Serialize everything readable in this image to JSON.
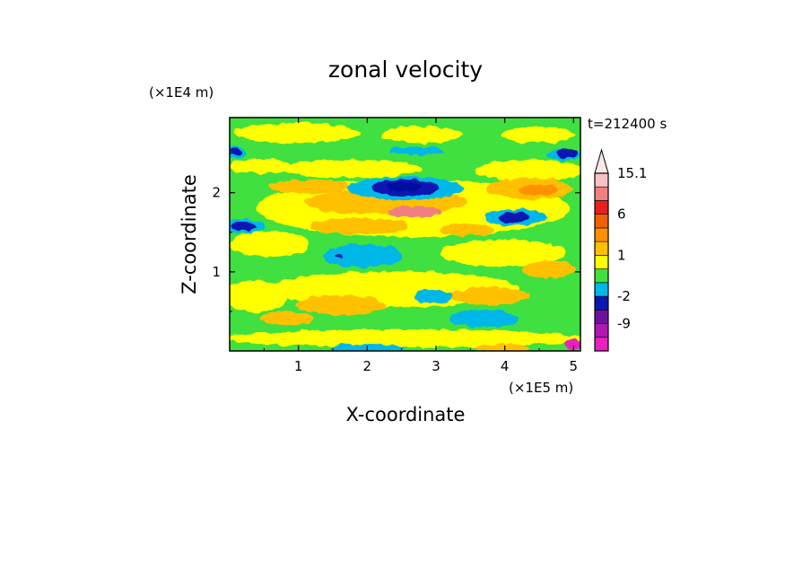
{
  "chart_data": {
    "type": "heatmap",
    "title": "zonal velocity",
    "xlabel": "X-coordinate",
    "ylabel": "Z-coordinate",
    "x_unit": "(×1E5 m)",
    "y_unit": "(×1E4 m)",
    "time_label": "t=212400 s",
    "xlim": [
      0,
      5.1
    ],
    "ylim": [
      0,
      2.95
    ],
    "x_ticks": [
      1,
      2,
      3,
      4,
      5
    ],
    "y_ticks": [
      1,
      2
    ],
    "colorbar": {
      "levels": [
        -12,
        -9,
        -6,
        -2,
        -1,
        0,
        1,
        2,
        3,
        6,
        9,
        12,
        15.1
      ],
      "colors": [
        "#e820c0",
        "#b018b0",
        "#7010a0",
        "#0818b0",
        "#00b8e8",
        "#40e040",
        "#ffff00",
        "#ffc000",
        "#ff9000",
        "#f06000",
        "#e82020",
        "#f08080",
        "#f8c0c0"
      ],
      "tick_labels": [
        "15.1",
        "6",
        "1",
        "-2",
        "-9"
      ],
      "tick_values": [
        15.1,
        6,
        1,
        -2,
        -9
      ],
      "extend": "max"
    },
    "colors": {
      "base": "#40e040",
      "yellow": "#ffff00",
      "orange": "#ffc000",
      "dark_orange": "#ff9000",
      "light_red": "#f08080",
      "red": "#e82020",
      "cyan": "#00b8e8",
      "blue": "#0818b0",
      "dark_blue": "#0010a0",
      "magenta": "#e820c0"
    }
  }
}
